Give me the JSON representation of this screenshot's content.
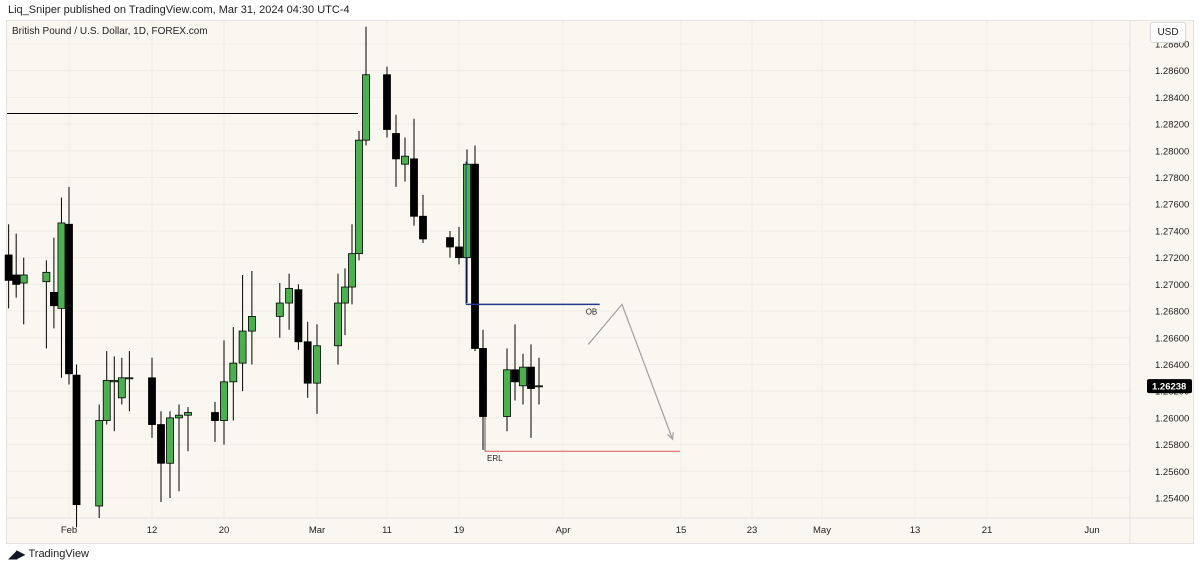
{
  "header": {
    "publisher": "Liq_Sniper published on TradingView.com, Mar 31, 2024 04:30 UTC-4"
  },
  "symbol_label": "British Pound / U.S. Dollar, 1D, FOREX.com",
  "currency_button": "USD",
  "footer": {
    "brand": "TradingView"
  },
  "colors": {
    "bull": "#4caf50",
    "bear": "#000000",
    "grid": "#efece4",
    "background": "#faf7f0",
    "ob_line": "#1f3b8f",
    "erl_line": "#e05555",
    "resistance_line": "#000000",
    "projection": "#a0a0a0",
    "price_tag": "#000000"
  },
  "chart_data": {
    "type": "candlestick",
    "title": "British Pound / U.S. Dollar, 1D, FOREX.com",
    "ylim": [
      1.2525,
      1.2898
    ],
    "y_ticks": [
      "1.28800",
      "1.28600",
      "1.28400",
      "1.28200",
      "1.28000",
      "1.27800",
      "1.27600",
      "1.27400",
      "1.27200",
      "1.27000",
      "1.26800",
      "1.26600",
      "1.26400",
      "1.26200",
      "1.26000",
      "1.25800",
      "1.25600",
      "1.25400"
    ],
    "x_ticks": [
      {
        "label": "Feb",
        "date": "2024-02-01"
      },
      {
        "label": "12",
        "date": "2024-02-12"
      },
      {
        "label": "20",
        "date": "2024-02-20"
      },
      {
        "label": "Mar",
        "date": "2024-03-01"
      },
      {
        "label": "11",
        "date": "2024-03-11"
      },
      {
        "label": "19",
        "date": "2024-03-19"
      },
      {
        "label": "Apr",
        "date": "2024-04-01"
      },
      {
        "label": "15",
        "date": "2024-04-15"
      },
      {
        "label": "23",
        "date": "2024-04-23"
      },
      {
        "label": "May",
        "date": "2024-05-01"
      },
      {
        "label": "13",
        "date": "2024-05-13"
      },
      {
        "label": "21",
        "date": "2024-05-21"
      },
      {
        "label": "Jun",
        "date": "2024-06-03"
      }
    ],
    "last_price": "1.26238",
    "candles": [
      {
        "date": "2024-01-24",
        "o": 1.2722,
        "h": 1.2745,
        "l": 1.2682,
        "c": 1.2703
      },
      {
        "date": "2024-01-25",
        "o": 1.2707,
        "h": 1.2738,
        "l": 1.269,
        "c": 1.27
      },
      {
        "date": "2024-01-26",
        "o": 1.2701,
        "h": 1.272,
        "l": 1.267,
        "c": 1.2707
      },
      {
        "date": "2024-01-29",
        "o": 1.2702,
        "h": 1.2718,
        "l": 1.2652,
        "c": 1.2709
      },
      {
        "date": "2024-01-30",
        "o": 1.2694,
        "h": 1.2735,
        "l": 1.2667,
        "c": 1.2684
      },
      {
        "date": "2024-01-31",
        "o": 1.2682,
        "h": 1.2765,
        "l": 1.263,
        "c": 1.2746
      },
      {
        "date": "2024-02-01",
        "o": 1.2745,
        "h": 1.2773,
        "l": 1.2625,
        "c": 1.2633
      },
      {
        "date": "2024-02-02",
        "o": 1.2632,
        "h": 1.264,
        "l": 1.2518,
        "c": 1.2535
      },
      {
        "date": "2024-02-05",
        "o": 1.2534,
        "h": 1.261,
        "l": 1.2525,
        "c": 1.2598
      },
      {
        "date": "2024-02-06",
        "o": 1.2598,
        "h": 1.265,
        "l": 1.2595,
        "c": 1.2628
      },
      {
        "date": "2024-02-07",
        "o": 1.2627,
        "h": 1.2646,
        "l": 1.259,
        "c": 1.2628
      },
      {
        "date": "2024-02-08",
        "o": 1.2615,
        "h": 1.2645,
        "l": 1.261,
        "c": 1.263
      },
      {
        "date": "2024-02-09",
        "o": 1.263,
        "h": 1.265,
        "l": 1.2605,
        "c": 1.263
      },
      {
        "date": "2024-02-12",
        "o": 1.263,
        "h": 1.2645,
        "l": 1.2585,
        "c": 1.2595
      },
      {
        "date": "2024-02-13",
        "o": 1.2595,
        "h": 1.2605,
        "l": 1.2537,
        "c": 1.2566
      },
      {
        "date": "2024-02-14",
        "o": 1.2566,
        "h": 1.2605,
        "l": 1.254,
        "c": 1.26
      },
      {
        "date": "2024-02-15",
        "o": 1.26,
        "h": 1.261,
        "l": 1.2545,
        "c": 1.2602
      },
      {
        "date": "2024-02-16",
        "o": 1.2602,
        "h": 1.2608,
        "l": 1.2575,
        "c": 1.2604
      },
      {
        "date": "2024-02-19",
        "o": 1.2604,
        "h": 1.2612,
        "l": 1.2582,
        "c": 1.2598
      },
      {
        "date": "2024-02-20",
        "o": 1.2598,
        "h": 1.2658,
        "l": 1.258,
        "c": 1.2627
      },
      {
        "date": "2024-02-21",
        "o": 1.2627,
        "h": 1.2668,
        "l": 1.2598,
        "c": 1.2641
      },
      {
        "date": "2024-02-22",
        "o": 1.2641,
        "h": 1.2707,
        "l": 1.262,
        "c": 1.2665
      },
      {
        "date": "2024-02-23",
        "o": 1.2665,
        "h": 1.271,
        "l": 1.264,
        "c": 1.2676
      },
      {
        "date": "2024-02-26",
        "o": 1.2676,
        "h": 1.2701,
        "l": 1.266,
        "c": 1.2686
      },
      {
        "date": "2024-02-27",
        "o": 1.2686,
        "h": 1.2708,
        "l": 1.2666,
        "c": 1.2697
      },
      {
        "date": "2024-02-28",
        "o": 1.2696,
        "h": 1.27,
        "l": 1.2651,
        "c": 1.2657
      },
      {
        "date": "2024-02-29",
        "o": 1.2657,
        "h": 1.2672,
        "l": 1.2615,
        "c": 1.2626
      },
      {
        "date": "2024-03-01",
        "o": 1.2626,
        "h": 1.267,
        "l": 1.2603,
        "c": 1.2654
      },
      {
        "date": "2024-03-04",
        "o": 1.2654,
        "h": 1.2708,
        "l": 1.264,
        "c": 1.2686
      },
      {
        "date": "2024-03-05",
        "o": 1.2686,
        "h": 1.2712,
        "l": 1.2662,
        "c": 1.2698
      },
      {
        "date": "2024-03-06",
        "o": 1.2698,
        "h": 1.2745,
        "l": 1.2685,
        "c": 1.2723
      },
      {
        "date": "2024-03-07",
        "o": 1.2723,
        "h": 1.2815,
        "l": 1.2718,
        "c": 1.2808
      },
      {
        "date": "2024-03-08",
        "o": 1.2808,
        "h": 1.2893,
        "l": 1.2804,
        "c": 1.2857
      },
      {
        "date": "2024-03-11",
        "o": 1.2857,
        "h": 1.2863,
        "l": 1.281,
        "c": 1.2816
      },
      {
        "date": "2024-03-12",
        "o": 1.2813,
        "h": 1.2827,
        "l": 1.2773,
        "c": 1.2794
      },
      {
        "date": "2024-03-13",
        "o": 1.279,
        "h": 1.281,
        "l": 1.2777,
        "c": 1.2796
      },
      {
        "date": "2024-03-14",
        "o": 1.2794,
        "h": 1.2824,
        "l": 1.2744,
        "c": 1.2751
      },
      {
        "date": "2024-03-15",
        "o": 1.2751,
        "h": 1.2767,
        "l": 1.2731,
        "c": 1.2734
      },
      {
        "date": "2024-03-18",
        "o": 1.2735,
        "h": 1.274,
        "l": 1.272,
        "c": 1.2728
      },
      {
        "date": "2024-03-19",
        "o": 1.2728,
        "h": 1.2743,
        "l": 1.2715,
        "c": 1.272
      },
      {
        "date": "2024-03-20",
        "o": 1.272,
        "h": 1.2801,
        "l": 1.2686,
        "c": 1.279
      },
      {
        "date": "2024-03-21",
        "o": 1.279,
        "h": 1.2804,
        "l": 1.265,
        "c": 1.2652
      },
      {
        "date": "2024-03-22",
        "o": 1.2652,
        "h": 1.2666,
        "l": 1.2576,
        "c": 1.2601
      },
      {
        "date": "2024-03-25",
        "o": 1.2601,
        "h": 1.2652,
        "l": 1.259,
        "c": 1.2636
      },
      {
        "date": "2024-03-26",
        "o": 1.2636,
        "h": 1.267,
        "l": 1.2613,
        "c": 1.2627
      },
      {
        "date": "2024-03-27",
        "o": 1.2624,
        "h": 1.2648,
        "l": 1.261,
        "c": 1.2638
      },
      {
        "date": "2024-03-28",
        "o": 1.2638,
        "h": 1.2655,
        "l": 1.2585,
        "c": 1.2622
      },
      {
        "date": "2024-03-29",
        "o": 1.2624,
        "h": 1.2645,
        "l": 1.261,
        "c": 1.2624
      }
    ],
    "levels": {
      "resistance": {
        "price": 1.2828,
        "from": "2024-01-24",
        "to": "2024-03-08"
      },
      "ob": {
        "label": "OB",
        "price": 1.2685,
        "from": "2024-03-20",
        "to": "2024-04-05"
      },
      "erl": {
        "label": "ERL",
        "price": 1.2575,
        "from": "2024-03-22",
        "to": "2024-04-15",
        "start_price": 1.2601
      }
    },
    "projection": [
      {
        "date": "2024-04-04",
        "price": 1.2655
      },
      {
        "date": "2024-04-08",
        "price": 1.2685
      },
      {
        "date": "2024-04-14",
        "price": 1.2584
      }
    ]
  }
}
